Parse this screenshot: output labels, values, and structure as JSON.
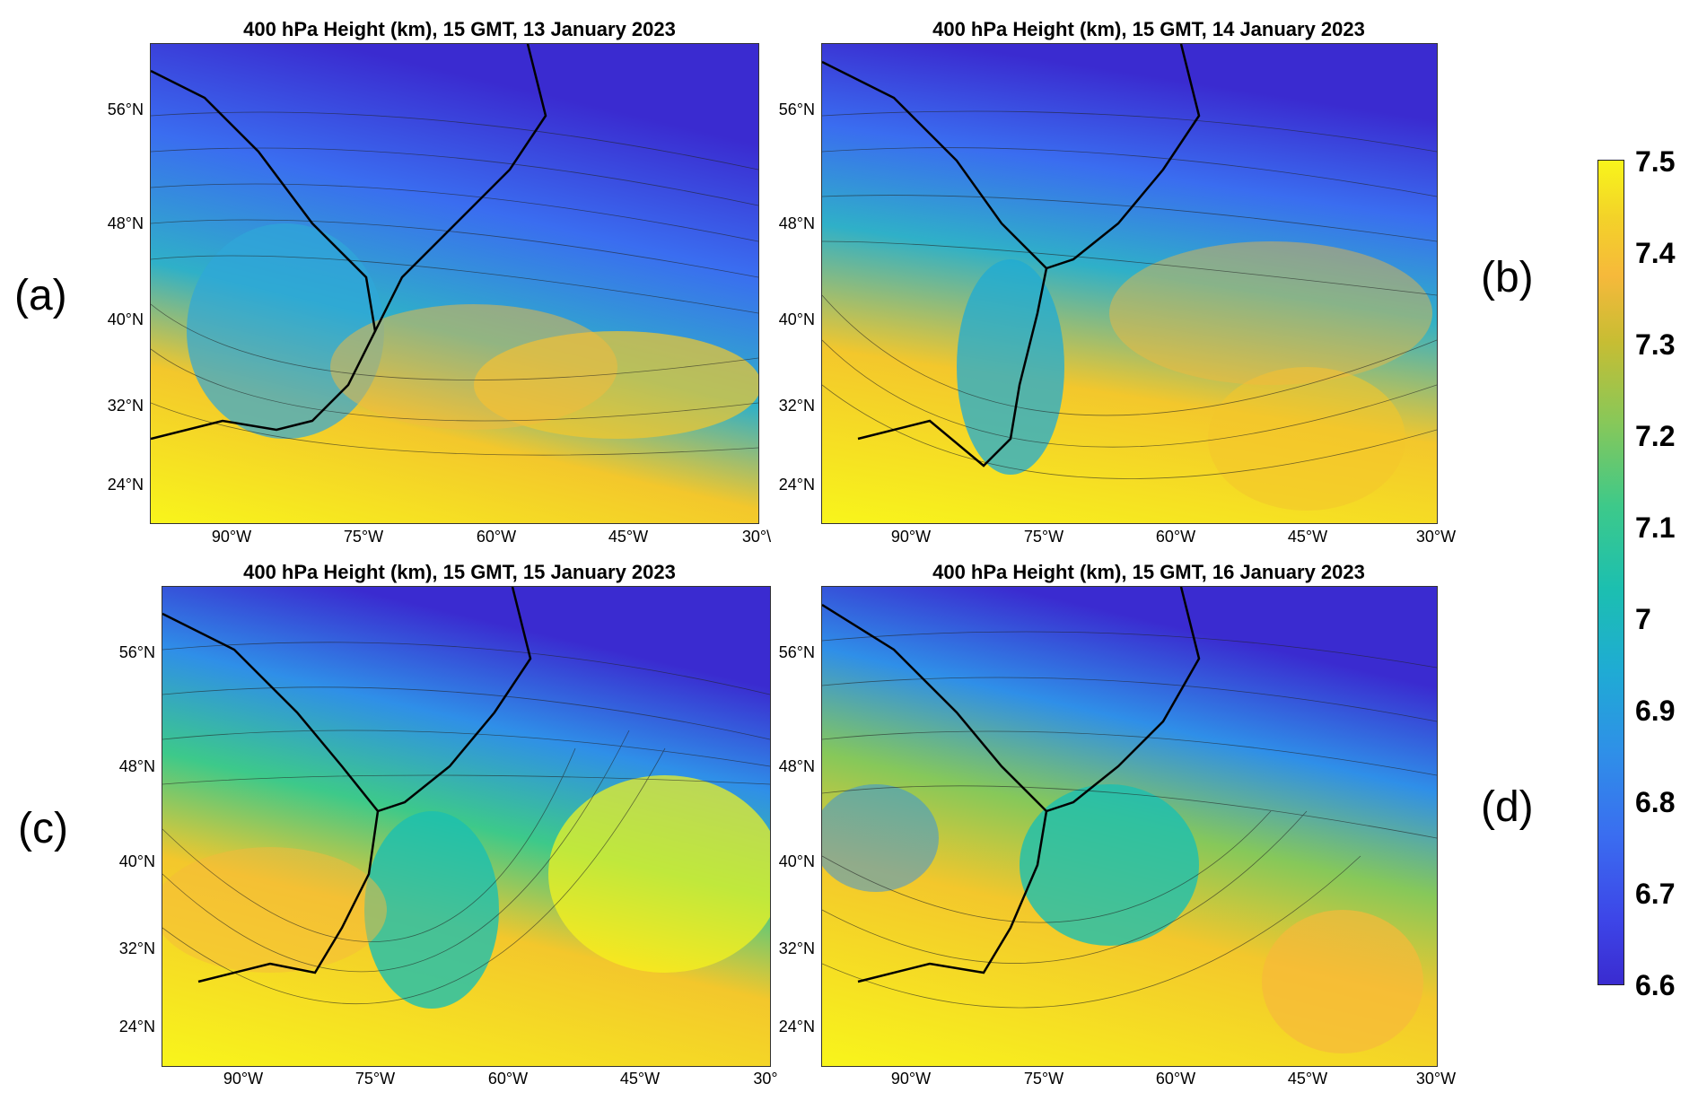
{
  "panels": [
    {
      "id": "a",
      "title": "400 hPa Height (km), 15 GMT, 13 January 2023",
      "label": "(a)",
      "lon_labels": [
        "90°W",
        "75°W",
        "60°W",
        "45°W",
        "30°\\"
      ]
    },
    {
      "id": "b",
      "title": "400 hPa Height (km), 15 GMT, 14 January 2023",
      "label": "(b)",
      "lon_labels": [
        "90°W",
        "75°W",
        "60°W",
        "45°W",
        "30°W"
      ]
    },
    {
      "id": "c",
      "title": "400 hPa Height (km), 15 GMT, 15 January 2023",
      "label": "(c)",
      "lon_labels": [
        "90°W",
        "75°W",
        "60°W",
        "45°W",
        "30°"
      ]
    },
    {
      "id": "d",
      "title": "400 hPa Height (km), 15 GMT, 16 January 2023",
      "label": "(d)",
      "lon_labels": [
        "90°W",
        "75°W",
        "60°W",
        "45°W",
        "30°W"
      ]
    }
  ],
  "lat_labels": [
    "56°N",
    "48°N",
    "40°N",
    "32°N",
    "24°N"
  ],
  "colorbar": {
    "ticks": [
      "7.5",
      "7.4",
      "7.3",
      "7.2",
      "7.1",
      "7",
      "6.9",
      "6.8",
      "6.7",
      "6.6"
    ],
    "min": 6.6,
    "max": 7.5,
    "colors": {
      "low": "#3a2bd0",
      "mid": "#1cbfb0",
      "high": "#f8f51b"
    }
  }
}
